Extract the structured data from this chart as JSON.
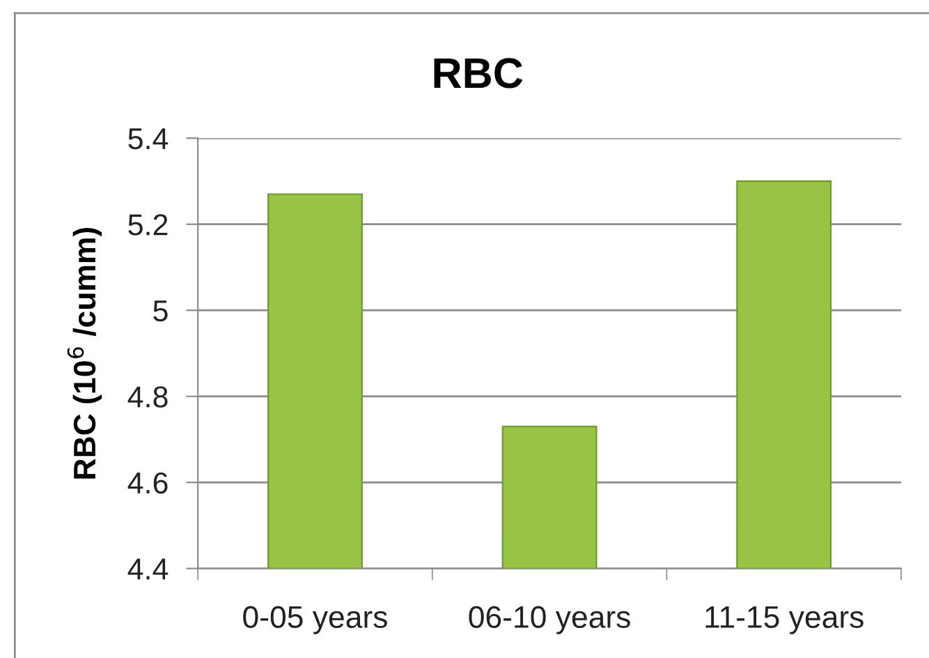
{
  "chart_data": {
    "type": "bar",
    "title": "RBC",
    "ylabel": "RBC (10$^{6}$ /cumm)",
    "categories": [
      "0-05 years",
      "06-10 years",
      "11-15 years"
    ],
    "values": [
      5.27,
      4.73,
      5.3
    ],
    "color": "#98c445",
    "ylim": [
      4.4,
      5.4
    ],
    "yticks": [
      4.4,
      4.6,
      4.8,
      5,
      5.2,
      5.4
    ],
    "grid": "y",
    "legend": false
  }
}
